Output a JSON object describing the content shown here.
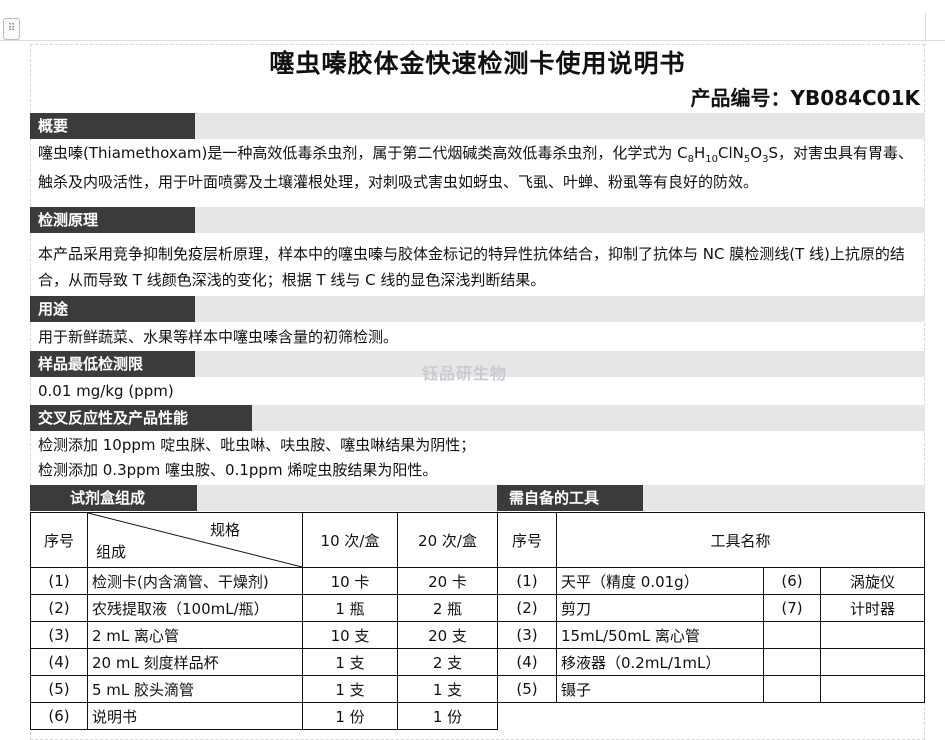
{
  "title": "噻虫嗪胶体金快速检测卡使用说明书",
  "product_code": "产品编号：YB084C01K",
  "watermark": "钰品研生物",
  "sections": {
    "overview": {
      "heading": "概要",
      "text_a": "噻虫嗪(Thiamethoxam)是一种高效低毒杀虫剂，属于第二代烟碱类高效低毒杀虫剂，化学式为 C",
      "formula": [
        "8",
        "H",
        "10",
        "ClN",
        "5",
        "O",
        "3",
        "S"
      ],
      "text_b": "，对害虫具有胃毒、触杀及内吸活性，用于叶面喷雾及土壤灌根处理，对刺吸式害虫如蚜虫、飞虱、叶蝉、粉虱等有良好的防效。"
    },
    "principle": {
      "heading": "检测原理",
      "text": "本产品采用竞争抑制免疫层析原理，样本中的噻虫嗪与胶体金标记的特异性抗体结合，抑制了抗体与 NC 膜检测线(T 线)上抗原的结合，从而导致 T 线颜色深浅的变化；根据 T 线与 C 线的显色深浅判断结果。"
    },
    "usage": {
      "heading": "用途",
      "text": "用于新鲜蔬菜、水果等样本中噻虫嗪含量的初筛检测。"
    },
    "lod": {
      "heading": "样品最低检测限",
      "text": "0.01 mg/kg (ppm)"
    },
    "cross": {
      "heading": "交叉反应性及产品性能",
      "line1": "检测添加 10ppm 啶虫脒、吡虫啉、呋虫胺、噻虫啉结果为阴性；",
      "line2": "检测添加 0.3ppm 噻虫胺、0.1ppm 烯啶虫胺结果为阳性。"
    },
    "kit": {
      "heading": "试剂盒组成"
    },
    "tools": {
      "heading": "需自备的工具"
    }
  },
  "kit_table": {
    "headers": {
      "no": "序号",
      "spec": "规格",
      "comp": "组成",
      "c10": "10 次/盒",
      "c20": "20 次/盒"
    },
    "rows": [
      {
        "no": "(1)",
        "name": "检测卡(内含滴管、干燥剂)",
        "c10": "10 卡",
        "c20": "20 卡"
      },
      {
        "no": "(2)",
        "name": "农残提取液（100mL/瓶）",
        "c10": "1 瓶",
        "c20": "2 瓶"
      },
      {
        "no": "(3)",
        "name": "2 mL 离心管",
        "c10": "10 支",
        "c20": "20 支"
      },
      {
        "no": "(4)",
        "name": "20 mL 刻度样品杯",
        "c10": "1 支",
        "c20": "2 支"
      },
      {
        "no": "(5)",
        "name": "5 mL 胶头滴管",
        "c10": "1 支",
        "c20": "1 支"
      },
      {
        "no": "(6)",
        "name": "说明书",
        "c10": "1 份",
        "c20": "1 份"
      }
    ]
  },
  "tools_table": {
    "headers": {
      "no": "序号",
      "name": "工具名称"
    },
    "rows": [
      {
        "no": "(1)",
        "name": "天平（精度 0.01g）",
        "no2": "(6)",
        "name2": "涡旋仪"
      },
      {
        "no": "(2)",
        "name": "剪刀",
        "no2": "(7)",
        "name2": "计时器"
      },
      {
        "no": "(3)",
        "name": "15mL/50mL 离心管",
        "no2": "",
        "name2": ""
      },
      {
        "no": "(4)",
        "name": "移液器（0.2mL/1mL）",
        "no2": "",
        "name2": ""
      },
      {
        "no": "(5)",
        "name": "镊子",
        "no2": "",
        "name2": ""
      }
    ]
  }
}
